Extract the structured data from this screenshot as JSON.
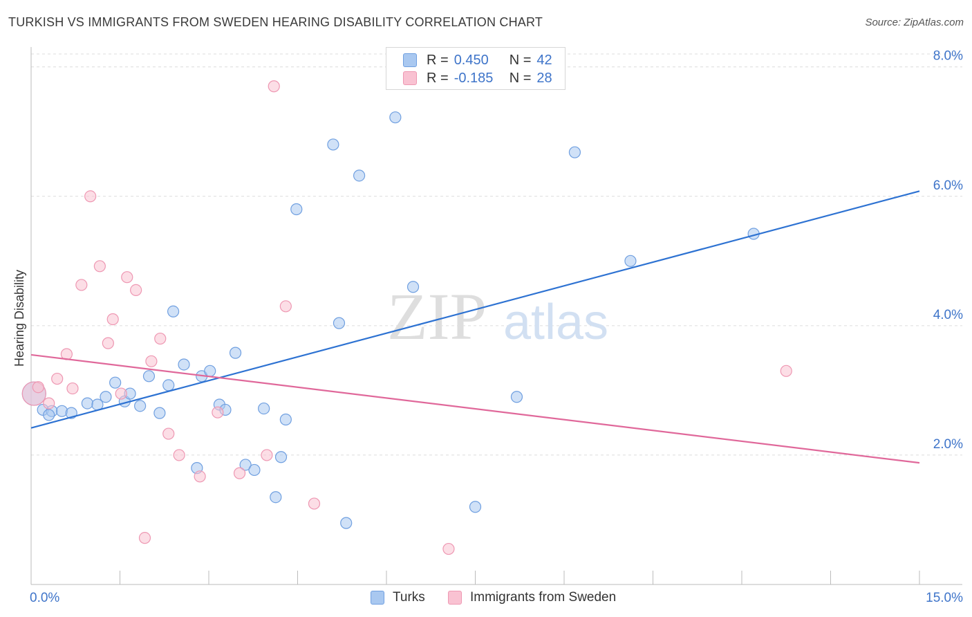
{
  "title": "TURKISH VS IMMIGRANTS FROM SWEDEN HEARING DISABILITY CORRELATION CHART",
  "source": "Source: ZipAtlas.com",
  "watermark": {
    "zip": "ZIP",
    "atlas": "atlas"
  },
  "legend": {
    "r_label": "R =",
    "n_label": "N =",
    "series": [
      {
        "name": "Turks",
        "r": "0.450",
        "n": "42",
        "color": "#a9c8f0",
        "stroke": "#6f9fe0"
      },
      {
        "name": "Immigrants from Sweden",
        "r": "-0.185",
        "n": "28",
        "color": "#f9c2d2",
        "stroke": "#ee97b2"
      }
    ]
  },
  "chart_data": {
    "type": "scatter",
    "title": "TURKISH VS IMMIGRANTS FROM SWEDEN HEARING DISABILITY CORRELATION CHART",
    "xlabel": "",
    "ylabel": "Hearing Disability",
    "xlim": [
      0,
      15
    ],
    "ylim": [
      0,
      8.2
    ],
    "x_tick_labels": [
      "0.0%",
      "15.0%"
    ],
    "y_ticks": [
      2,
      4,
      6,
      8
    ],
    "y_tick_labels": [
      "2.0%",
      "4.0%",
      "6.0%",
      "8.0%"
    ],
    "grid": true,
    "series": [
      {
        "name": "Turks",
        "color": "#a9c8f0",
        "stroke": "#6f9fe0",
        "line_color": "#2d72d2",
        "trend": {
          "x": [
            0,
            15
          ],
          "y": [
            2.42,
            6.08
          ]
        },
        "points": [
          {
            "x": 0.05,
            "y": 2.95,
            "big": true
          },
          {
            "x": 0.2,
            "y": 2.7
          },
          {
            "x": 0.35,
            "y": 2.68
          },
          {
            "x": 0.52,
            "y": 2.68
          },
          {
            "x": 0.68,
            "y": 2.65
          },
          {
            "x": 0.95,
            "y": 2.8
          },
          {
            "x": 1.12,
            "y": 2.78
          },
          {
            "x": 1.26,
            "y": 2.9
          },
          {
            "x": 1.42,
            "y": 3.12
          },
          {
            "x": 1.58,
            "y": 2.83
          },
          {
            "x": 1.67,
            "y": 2.95
          },
          {
            "x": 1.84,
            "y": 2.76
          },
          {
            "x": 1.99,
            "y": 3.22
          },
          {
            "x": 2.17,
            "y": 2.65
          },
          {
            "x": 2.32,
            "y": 3.08
          },
          {
            "x": 2.4,
            "y": 4.22
          },
          {
            "x": 2.58,
            "y": 3.4
          },
          {
            "x": 2.8,
            "y": 1.8
          },
          {
            "x": 2.88,
            "y": 3.22
          },
          {
            "x": 3.02,
            "y": 3.3
          },
          {
            "x": 3.18,
            "y": 2.78
          },
          {
            "x": 3.28,
            "y": 2.7
          },
          {
            "x": 3.45,
            "y": 3.58
          },
          {
            "x": 3.62,
            "y": 1.85
          },
          {
            "x": 3.77,
            "y": 1.77
          },
          {
            "x": 3.93,
            "y": 2.72
          },
          {
            "x": 4.13,
            "y": 1.35
          },
          {
            "x": 4.22,
            "y": 1.97
          },
          {
            "x": 4.3,
            "y": 2.55
          },
          {
            "x": 4.48,
            "y": 5.8
          },
          {
            "x": 5.1,
            "y": 6.8
          },
          {
            "x": 5.2,
            "y": 4.04
          },
          {
            "x": 5.32,
            "y": 0.95
          },
          {
            "x": 5.54,
            "y": 6.32
          },
          {
            "x": 6.15,
            "y": 7.22
          },
          {
            "x": 6.45,
            "y": 4.6
          },
          {
            "x": 7.5,
            "y": 1.2
          },
          {
            "x": 8.2,
            "y": 2.9
          },
          {
            "x": 9.18,
            "y": 6.68
          },
          {
            "x": 10.12,
            "y": 5.0
          },
          {
            "x": 12.2,
            "y": 5.42
          },
          {
            "x": 0.3,
            "y": 2.62
          }
        ]
      },
      {
        "name": "Immigrants from Sweden",
        "color": "#f9c2d2",
        "stroke": "#ee97b2",
        "line_color": "#e0689a",
        "trend": {
          "x": [
            0,
            15
          ],
          "y": [
            3.55,
            1.88
          ]
        },
        "points": [
          {
            "x": 0.05,
            "y": 2.95,
            "big": true
          },
          {
            "x": 0.12,
            "y": 3.05
          },
          {
            "x": 0.3,
            "y": 2.8
          },
          {
            "x": 0.44,
            "y": 3.18
          },
          {
            "x": 0.6,
            "y": 3.56
          },
          {
            "x": 0.7,
            "y": 3.03
          },
          {
            "x": 0.85,
            "y": 4.63
          },
          {
            "x": 1.0,
            "y": 6.0
          },
          {
            "x": 1.16,
            "y": 4.92
          },
          {
            "x": 1.3,
            "y": 3.73
          },
          {
            "x": 1.38,
            "y": 4.1
          },
          {
            "x": 1.52,
            "y": 2.95
          },
          {
            "x": 1.62,
            "y": 4.75
          },
          {
            "x": 1.77,
            "y": 4.55
          },
          {
            "x": 1.92,
            "y": 0.72
          },
          {
            "x": 2.03,
            "y": 3.45
          },
          {
            "x": 2.18,
            "y": 3.8
          },
          {
            "x": 2.32,
            "y": 2.33
          },
          {
            "x": 2.5,
            "y": 2.0
          },
          {
            "x": 2.85,
            "y": 1.67
          },
          {
            "x": 3.15,
            "y": 2.66
          },
          {
            "x": 3.52,
            "y": 1.72
          },
          {
            "x": 3.98,
            "y": 2.0
          },
          {
            "x": 4.1,
            "y": 7.7
          },
          {
            "x": 4.3,
            "y": 4.3
          },
          {
            "x": 4.78,
            "y": 1.25
          },
          {
            "x": 7.05,
            "y": 0.55
          },
          {
            "x": 12.75,
            "y": 3.3
          }
        ]
      }
    ]
  }
}
